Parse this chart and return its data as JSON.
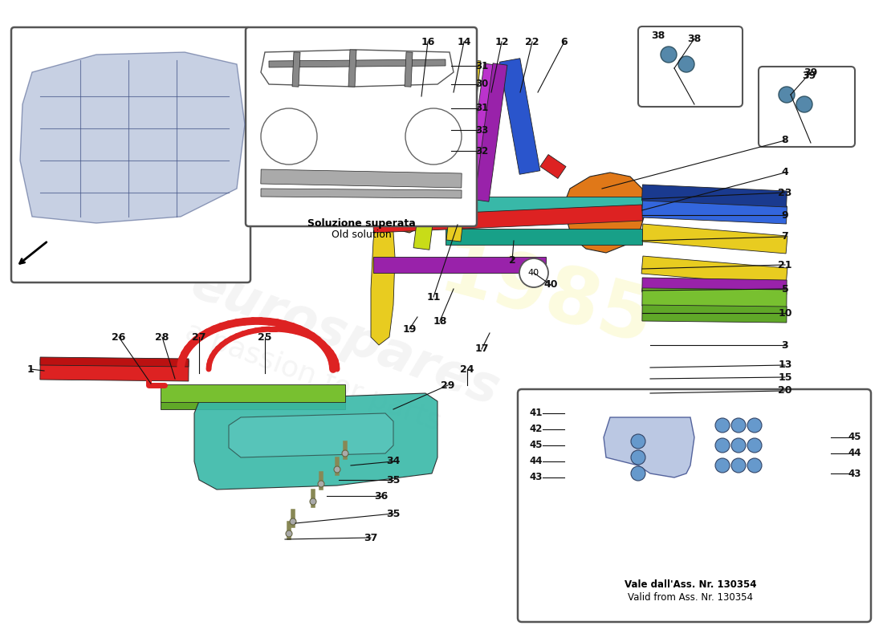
{
  "background_color": "#ffffff",
  "inset2_caption_line1": "Soluzione superata",
  "inset2_caption_line2": "Old solution",
  "inset3_caption_line1": "Vale dall'Ass. Nr. 130354",
  "inset3_caption_line2": "Valid from Ass. Nr. 130354",
  "colors": {
    "blue_dark": "#1a3a8f",
    "blue_medium": "#2a55cc",
    "blue_bright": "#3366dd",
    "orange": "#e07818",
    "orange_dark": "#c06010",
    "yellow": "#e8cc20",
    "yellow_green": "#c8dc18",
    "green_bright": "#78c030",
    "green_mid": "#60a828",
    "red_bright": "#dd2222",
    "red_dark": "#bb1111",
    "purple": "#9922aa",
    "purple_light": "#bb33cc",
    "teal": "#18a088",
    "teal_light": "#38b8a8",
    "cyan_light": "#60c8c0",
    "gray_chassis": "#8899cc",
    "gray_dark": "#334488"
  }
}
